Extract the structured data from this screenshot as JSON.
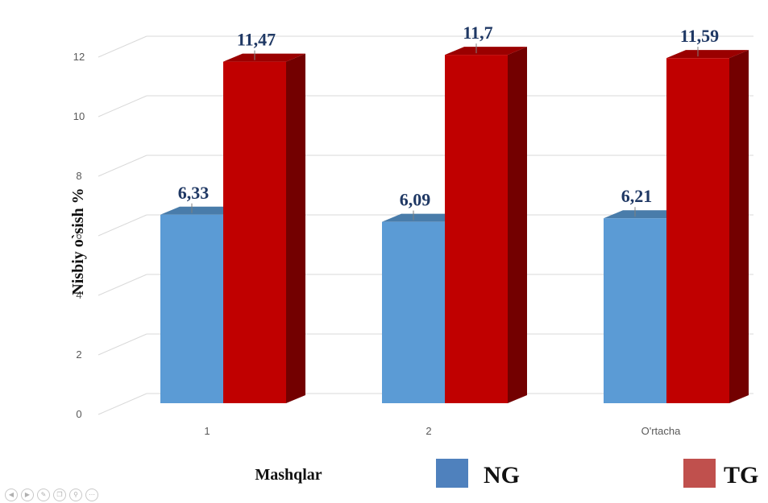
{
  "chart_data": {
    "type": "bar",
    "categories": [
      "1",
      "2",
      "O'rtacha"
    ],
    "series": [
      {
        "name": "NG",
        "values": [
          6.33,
          6.09,
          6.21
        ],
        "labels": [
          "6,33",
          "6,09",
          "6,21"
        ],
        "color": "#5b9bd5"
      },
      {
        "name": "TG",
        "values": [
          11.47,
          11.7,
          11.59
        ],
        "labels": [
          "11,47",
          "11,7",
          "11,59"
        ],
        "color": "#c00000"
      }
    ],
    "ylabel": "Nisbiy o`sish %",
    "xlabel": "Mashqlar",
    "ylim": [
      0,
      12
    ],
    "yticks": [
      "0",
      "2",
      "4",
      "6",
      "8",
      "10",
      "12"
    ],
    "grid": true,
    "legend_placement": "bottom"
  },
  "legend": {
    "ng_color": "#4f81bd",
    "tg_color": "#c0504d"
  },
  "nav_icons": [
    "prev-icon",
    "next-icon",
    "pen-icon",
    "copy-icon",
    "zoom-icon",
    "more-icon"
  ]
}
